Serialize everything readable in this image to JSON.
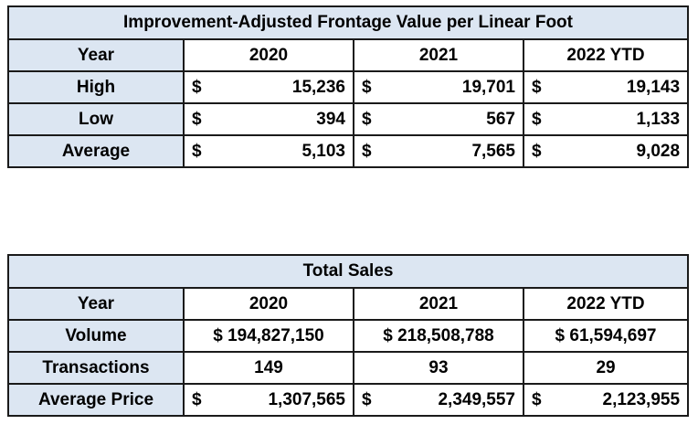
{
  "frontage_table": {
    "title": "Improvement-Adjusted Frontage Value per Linear Foot",
    "year_label": "Year",
    "years": [
      "2020",
      "2021",
      "2022 YTD"
    ],
    "rows": [
      {
        "label": "High",
        "currency": "$",
        "values": [
          "15,236",
          "19,701",
          "19,143"
        ]
      },
      {
        "label": "Low",
        "currency": "$",
        "values": [
          "394",
          "567",
          "1,133"
        ]
      },
      {
        "label": "Average",
        "currency": "$",
        "values": [
          "5,103",
          "7,565",
          "9,028"
        ]
      }
    ]
  },
  "sales_table": {
    "title": "Total Sales",
    "year_label": "Year",
    "years": [
      "2020",
      "2021",
      "2022 YTD"
    ],
    "volume": {
      "label": "Volume",
      "values": [
        "$ 194,827,150",
        "$ 218,508,788",
        "$ 61,594,697"
      ]
    },
    "transactions": {
      "label": "Transactions",
      "values": [
        "149",
        "93",
        "29"
      ]
    },
    "average_price": {
      "label": "Average Price",
      "currency": "$",
      "values": [
        "1,307,565",
        "2,349,557",
        "2,123,955"
      ]
    }
  },
  "colors": {
    "header_fill": "#dce6f2",
    "border": "#1a1a1a"
  }
}
